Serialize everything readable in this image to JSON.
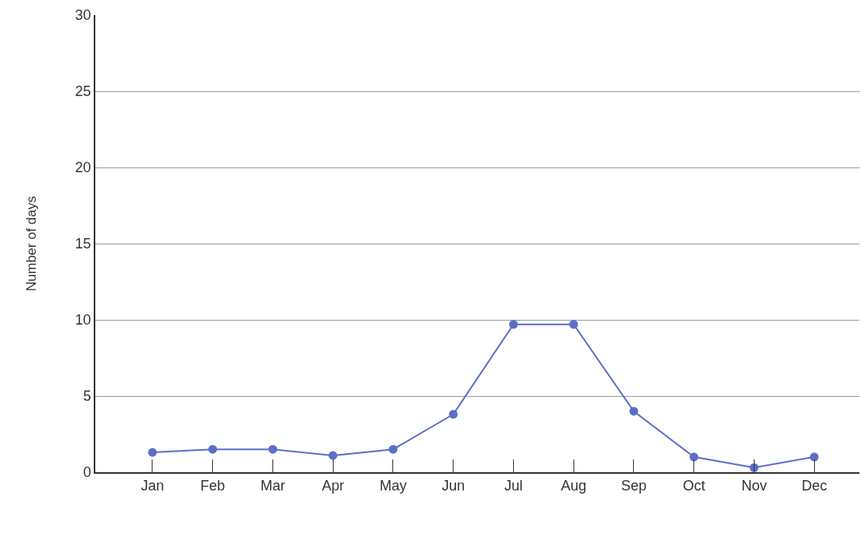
{
  "chart_data": {
    "type": "line",
    "ylabel": "Number of days",
    "categories": [
      "Jan",
      "Feb",
      "Mar",
      "Apr",
      "May",
      "Jun",
      "Jul",
      "Aug",
      "Sep",
      "Oct",
      "Nov",
      "Dec"
    ],
    "series": [
      {
        "color": "#5b6ec8",
        "values": [
          1.3,
          1.5,
          1.5,
          1.1,
          1.5,
          3.8,
          9.7,
          9.7,
          4.0,
          1.0,
          0.3,
          1.0
        ]
      }
    ],
    "ylim": [
      0,
      30
    ],
    "yticks": [
      0,
      5,
      10,
      15,
      20,
      25,
      30
    ],
    "grid": "y",
    "marker": "circle",
    "line_style": "solid"
  }
}
